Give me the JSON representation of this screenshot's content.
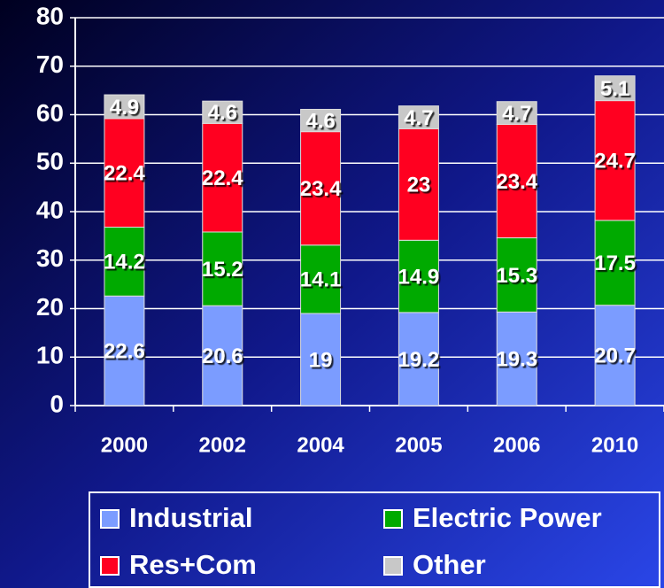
{
  "chart_data": {
    "type": "stacked_bar",
    "categories": [
      "2000",
      "2002",
      "2004",
      "2005",
      "2006",
      "2010"
    ],
    "series": [
      {
        "name": "Industrial",
        "color": "#7b9cff",
        "values": [
          22.6,
          20.6,
          19,
          19.2,
          19.3,
          20.7
        ]
      },
      {
        "name": "Electric Power",
        "color": "#00aa00",
        "values": [
          14.2,
          15.2,
          14.1,
          14.9,
          15.3,
          17.5
        ]
      },
      {
        "name": "Res+Com",
        "color": "#ff0020",
        "values": [
          22.4,
          22.4,
          23.4,
          23,
          23.4,
          24.7
        ]
      },
      {
        "name": "Other",
        "color": "#c8c8c8",
        "values": [
          4.9,
          4.6,
          4.6,
          4.7,
          4.7,
          5.1
        ]
      }
    ],
    "ylim": [
      0,
      80
    ],
    "yticks": [
      0,
      10,
      20,
      30,
      40,
      50,
      60,
      70,
      80
    ],
    "grid": true
  }
}
